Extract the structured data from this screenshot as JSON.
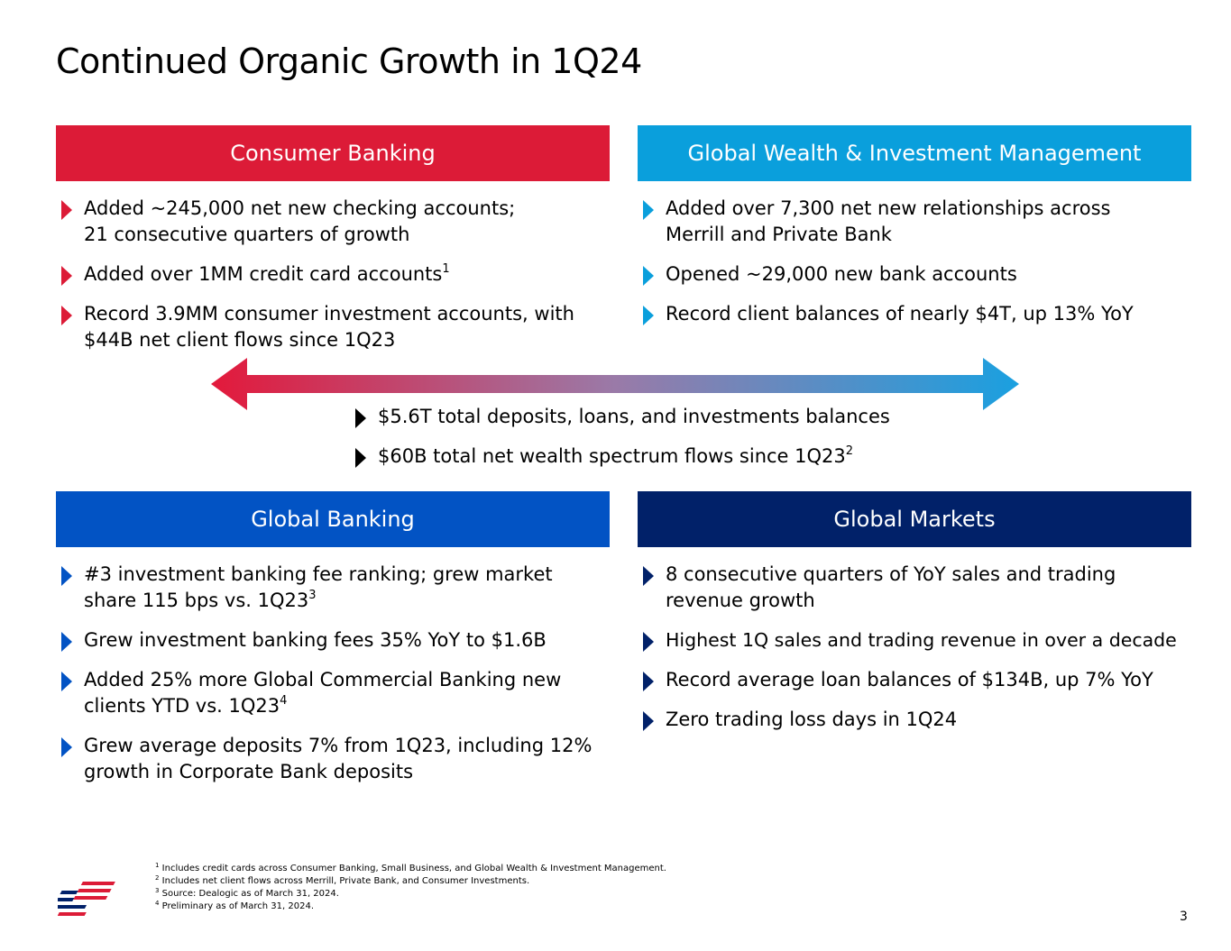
{
  "title": "Continued Organic Growth in 1Q24",
  "colors": {
    "consumer": "#dc1b37",
    "wealth": "#0a9fdc",
    "global_banking": "#0253c4",
    "global_markets": "#012169"
  },
  "consumer": {
    "header": "Consumer Banking",
    "bullets": [
      {
        "text": "Added ~245,000 net new checking accounts; 21 consecutive quarters of growth",
        "sup": ""
      },
      {
        "text": "Added over 1MM credit card accounts",
        "sup": "1"
      },
      {
        "text": "Record 3.9MM consumer investment accounts, with $44B net client flows since 1Q23",
        "sup": ""
      }
    ]
  },
  "wealth": {
    "header": "Global Wealth & Investment Management",
    "bullets": [
      {
        "text": "Added over 7,300 net new relationships across Merrill and Private Bank",
        "sup": ""
      },
      {
        "text": "Opened ~29,000 new bank accounts",
        "sup": ""
      },
      {
        "text": "Record client balances of nearly $4T, up 13% YoY",
        "sup": ""
      }
    ]
  },
  "center": {
    "bullets": [
      {
        "text": "$5.6T total deposits, loans, and investments balances",
        "sup": ""
      },
      {
        "text": "$60B total net wealth spectrum flows since 1Q23",
        "sup": "2"
      }
    ]
  },
  "global_banking": {
    "header": "Global Banking",
    "bullets": [
      {
        "text": "#3 investment banking fee ranking; grew market share 115 bps vs. 1Q23",
        "sup": "3"
      },
      {
        "text": "Grew investment banking fees 35% YoY to $1.6B",
        "sup": ""
      },
      {
        "text": "Added 25% more Global Commercial Banking new clients YTD vs. 1Q23",
        "sup": "4"
      },
      {
        "text": "Grew average deposits 7% from 1Q23, including 12% growth in Corporate Bank deposits",
        "sup": ""
      }
    ]
  },
  "global_markets": {
    "header": "Global Markets",
    "bullets": [
      {
        "text": "8 consecutive quarters of YoY sales and trading revenue growth",
        "sup": ""
      },
      {
        "text": "Highest 1Q sales and trading revenue in over a decade",
        "sup": ""
      },
      {
        "text": "Record average loan balances of $134B, up 7% YoY",
        "sup": ""
      },
      {
        "text": "Zero trading loss days in 1Q24",
        "sup": ""
      }
    ]
  },
  "footnotes": [
    {
      "num": "1",
      "text": "Includes credit cards across Consumer Banking, Small Business, and Global Wealth & Investment Management."
    },
    {
      "num": "2",
      "text": "Includes net client flows across Merrill, Private Bank, and Consumer Investments."
    },
    {
      "num": "3",
      "text": "Source: Dealogic as of March 31, 2024."
    },
    {
      "num": "4",
      "text": "Preliminary as of March 31, 2024."
    }
  ],
  "page_number": "3"
}
